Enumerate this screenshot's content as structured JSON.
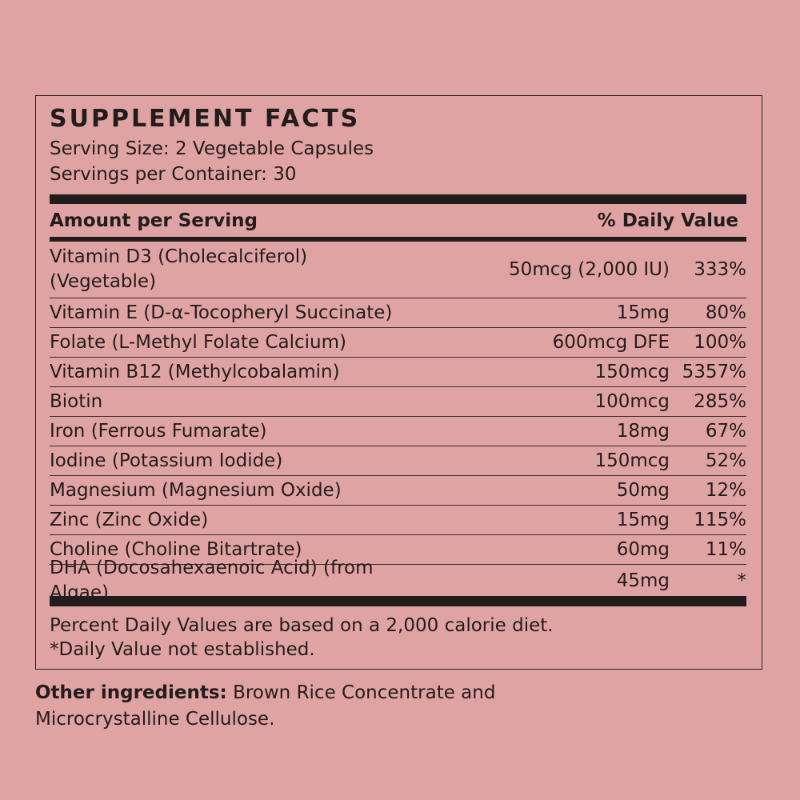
{
  "title": "SUPPLEMENT FACTS",
  "serving_size": "Serving Size: 2 Vegetable Capsules",
  "servings_per_container": "Servings per Container: 30",
  "table": {
    "header": [
      "Amount per Serving",
      "% Daily Value"
    ],
    "rows": [
      [
        "Vitamin D3 (Cholecalciferol)\n(Vegetable)",
        "50mcg (2,000 IU)",
        "333%"
      ],
      [
        "Vitamin E (D-α-Tocopheryl Succinate)",
        "15mg",
        "80%"
      ],
      [
        "Folate (L-Methyl Folate Calcium)",
        "600mcg DFE",
        "100%"
      ],
      [
        "Vitamin B12 (Methylcobalamin)",
        "150mcg",
        "5357%"
      ],
      [
        "Biotin",
        "100mcg",
        "285%"
      ],
      [
        "Iron (Ferrous Fumarate)",
        "18mg",
        "67%"
      ],
      [
        "Iodine (Potassium Iodide)",
        "150mcg",
        "52%"
      ],
      [
        "Magnesium (Magnesium Oxide)",
        "50mg",
        "12%"
      ],
      [
        "Zinc (Zinc Oxide)",
        "15mg",
        "115%"
      ],
      [
        "Choline (Choline Bitartrate)",
        "60mg",
        "11%"
      ],
      [
        "DHA (Docosahexaenoic Acid) (from Algae)",
        "45mg",
        "*"
      ]
    ]
  },
  "footnotes": [
    "Percent Daily Values are based on a 2,000 calorie diet.",
    "*Daily Value not established."
  ],
  "other_ingredients": {
    "label": "Other ingredients:",
    "text": "Brown Rice Concentrate and Microcrystalline Cellulose."
  }
}
